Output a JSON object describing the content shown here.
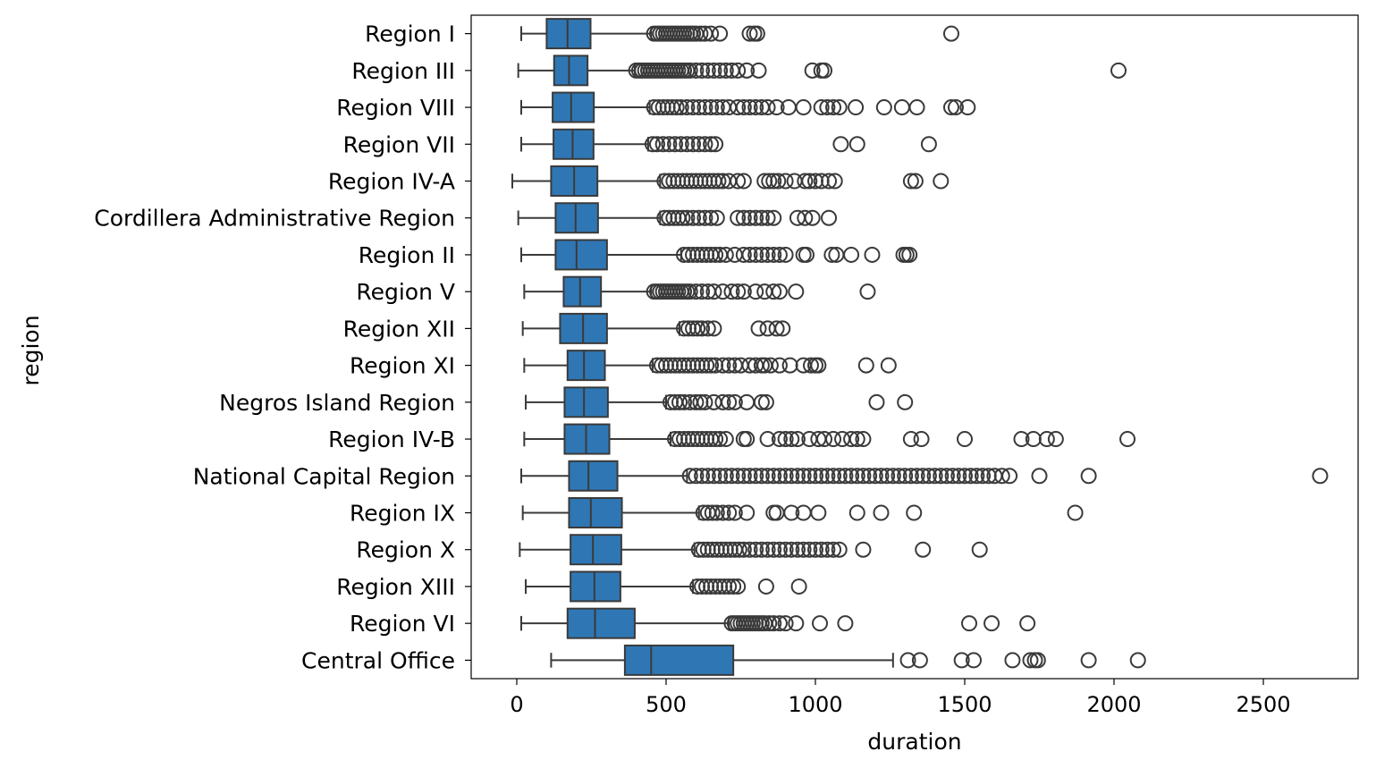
{
  "chart_data": {
    "type": "box",
    "orientation": "horizontal",
    "xlabel": "duration",
    "ylabel": "region",
    "xlim": [
      -155,
      2830
    ],
    "xticks": [
      0,
      500,
      1000,
      1500,
      2000,
      2500
    ],
    "grid": false,
    "legend": "none",
    "colors": {
      "box_fill": "#2f77b4",
      "line": "#3a3a3a",
      "axis": "#000000"
    },
    "boxes": [
      {
        "category": "Region I",
        "whisker_low": 15,
        "q1": 100,
        "median": 170,
        "q3": 247,
        "whisker_high": 450,
        "outliers": [
          460,
          470,
          480,
          490,
          500,
          510,
          520,
          530,
          540,
          550,
          560,
          570,
          580,
          590,
          600,
          615,
          630,
          650,
          680,
          780,
          795,
          805,
          1455
        ]
      },
      {
        "category": "Region III",
        "whisker_low": 5,
        "q1": 125,
        "median": 175,
        "q3": 237,
        "whisker_high": 395,
        "outliers": [
          400,
          410,
          420,
          430,
          440,
          450,
          460,
          470,
          480,
          490,
          500,
          510,
          520,
          530,
          540,
          550,
          560,
          570,
          580,
          600,
          620,
          640,
          660,
          680,
          700,
          720,
          740,
          770,
          810,
          990,
          1020,
          1030,
          2015
        ]
      },
      {
        "category": "Region VIII",
        "whisker_low": 15,
        "q1": 120,
        "median": 182,
        "q3": 258,
        "whisker_high": 445,
        "outliers": [
          460,
          475,
          490,
          505,
          520,
          535,
          550,
          570,
          590,
          610,
          630,
          650,
          670,
          690,
          710,
          740,
          760,
          780,
          800,
          820,
          840,
          870,
          910,
          960,
          1020,
          1040,
          1060,
          1080,
          1135,
          1230,
          1290,
          1340,
          1455,
          1470,
          1510
        ]
      },
      {
        "category": "Region VII",
        "whisker_low": 15,
        "q1": 123,
        "median": 187,
        "q3": 257,
        "whisker_high": 440,
        "outliers": [
          455,
          470,
          490,
          510,
          530,
          550,
          570,
          590,
          610,
          630,
          650,
          665,
          1085,
          1140,
          1380
        ]
      },
      {
        "category": "Region IV-A",
        "whisker_low": -15,
        "q1": 115,
        "median": 192,
        "q3": 270,
        "whisker_high": 480,
        "outliers": [
          495,
          510,
          525,
          540,
          555,
          570,
          585,
          600,
          615,
          630,
          645,
          660,
          675,
          690,
          710,
          740,
          760,
          830,
          845,
          860,
          875,
          900,
          930,
          965,
          980,
          1000,
          1020,
          1045,
          1065,
          1320,
          1335,
          1420
        ]
      },
      {
        "category": "Cordillera Administrative Region",
        "whisker_low": 5,
        "q1": 130,
        "median": 197,
        "q3": 272,
        "whisker_high": 480,
        "outliers": [
          495,
          510,
          525,
          540,
          555,
          570,
          590,
          610,
          630,
          650,
          670,
          740,
          760,
          780,
          800,
          820,
          840,
          860,
          940,
          965,
          990,
          1045
        ]
      },
      {
        "category": "Region II",
        "whisker_low": 15,
        "q1": 130,
        "median": 200,
        "q3": 302,
        "whisker_high": 550,
        "outliers": [
          560,
          575,
          590,
          605,
          620,
          635,
          650,
          665,
          680,
          700,
          730,
          760,
          780,
          800,
          820,
          840,
          860,
          880,
          900,
          960,
          970,
          1055,
          1070,
          1120,
          1190,
          1295,
          1305,
          1315
        ]
      },
      {
        "category": "Region V",
        "whisker_low": 25,
        "q1": 157,
        "median": 212,
        "q3": 282,
        "whisker_high": 450,
        "outliers": [
          460,
          470,
          480,
          490,
          500,
          510,
          520,
          530,
          540,
          550,
          560,
          570,
          580,
          600,
          620,
          640,
          660,
          690,
          720,
          740,
          760,
          800,
          830,
          860,
          880,
          935,
          1175
        ]
      },
      {
        "category": "Region XII",
        "whisker_low": 20,
        "q1": 145,
        "median": 222,
        "q3": 302,
        "whisker_high": 545,
        "outliers": [
          560,
          575,
          590,
          605,
          620,
          640,
          660,
          810,
          840,
          870,
          890
        ]
      },
      {
        "category": "Region XI",
        "whisker_low": 25,
        "q1": 170,
        "median": 225,
        "q3": 295,
        "whisker_high": 455,
        "outliers": [
          470,
          485,
          500,
          515,
          530,
          545,
          560,
          575,
          590,
          605,
          620,
          635,
          650,
          665,
          690,
          710,
          730,
          750,
          780,
          800,
          820,
          830,
          850,
          880,
          915,
          960,
          985,
          1000,
          1010,
          1170,
          1245
        ]
      },
      {
        "category": "Negros Island Region",
        "whisker_low": 30,
        "q1": 160,
        "median": 225,
        "q3": 305,
        "whisker_high": 500,
        "outliers": [
          515,
          530,
          545,
          560,
          580,
          600,
          615,
          630,
          660,
          690,
          710,
          730,
          770,
          820,
          835,
          1205,
          1300
        ]
      },
      {
        "category": "Region IV-B",
        "whisker_low": 25,
        "q1": 160,
        "median": 232,
        "q3": 310,
        "whisker_high": 515,
        "outliers": [
          530,
          545,
          560,
          575,
          590,
          605,
          620,
          635,
          650,
          665,
          680,
          700,
          760,
          770,
          840,
          880,
          900,
          920,
          940,
          980,
          1010,
          1030,
          1060,
          1090,
          1120,
          1140,
          1160,
          1320,
          1355,
          1500,
          1690,
          1730,
          1775,
          1805,
          2045
        ]
      },
      {
        "category": "National Capital Region",
        "whisker_low": 15,
        "q1": 175,
        "median": 240,
        "q3": 337,
        "whisker_high": 570,
        "outliers": [
          580,
          600,
          620,
          640,
          660,
          680,
          700,
          720,
          740,
          760,
          780,
          800,
          820,
          840,
          860,
          880,
          900,
          920,
          940,
          960,
          980,
          1000,
          1020,
          1040,
          1060,
          1080,
          1100,
          1120,
          1140,
          1160,
          1180,
          1200,
          1220,
          1240,
          1260,
          1280,
          1300,
          1320,
          1340,
          1360,
          1380,
          1400,
          1420,
          1440,
          1460,
          1480,
          1500,
          1520,
          1540,
          1560,
          1580,
          1600,
          1625,
          1650,
          1750,
          1915,
          2690
        ]
      },
      {
        "category": "Region IX",
        "whisker_low": 20,
        "q1": 175,
        "median": 248,
        "q3": 352,
        "whisker_high": 610,
        "outliers": [
          625,
          640,
          655,
          670,
          690,
          710,
          730,
          770,
          860,
          870,
          920,
          960,
          1010,
          1140,
          1220,
          1330,
          1870
        ]
      },
      {
        "category": "Region X",
        "whisker_low": 10,
        "q1": 180,
        "median": 255,
        "q3": 350,
        "whisker_high": 595,
        "outliers": [
          610,
          625,
          640,
          655,
          670,
          685,
          700,
          715,
          730,
          745,
          760,
          780,
          800,
          820,
          840,
          860,
          880,
          900,
          920,
          940,
          960,
          980,
          1000,
          1020,
          1040,
          1060,
          1080,
          1160,
          1360,
          1550
        ]
      },
      {
        "category": "Region XIII",
        "whisker_low": 30,
        "q1": 180,
        "median": 260,
        "q3": 347,
        "whisker_high": 590,
        "outliers": [
          605,
          620,
          635,
          650,
          665,
          680,
          695,
          710,
          725,
          740,
          835,
          945
        ]
      },
      {
        "category": "Region VI",
        "whisker_low": 15,
        "q1": 170,
        "median": 262,
        "q3": 395,
        "whisker_high": 710,
        "outliers": [
          720,
          730,
          740,
          750,
          760,
          770,
          780,
          790,
          800,
          810,
          820,
          830,
          845,
          860,
          880,
          900,
          935,
          1015,
          1100,
          1515,
          1590,
          1710
        ]
      },
      {
        "category": "Central Office",
        "whisker_low": 115,
        "q1": 362,
        "median": 450,
        "q3": 725,
        "whisker_high": 1260,
        "outliers": [
          1310,
          1350,
          1490,
          1530,
          1660,
          1720,
          1735,
          1745,
          1915,
          2080
        ]
      }
    ]
  }
}
